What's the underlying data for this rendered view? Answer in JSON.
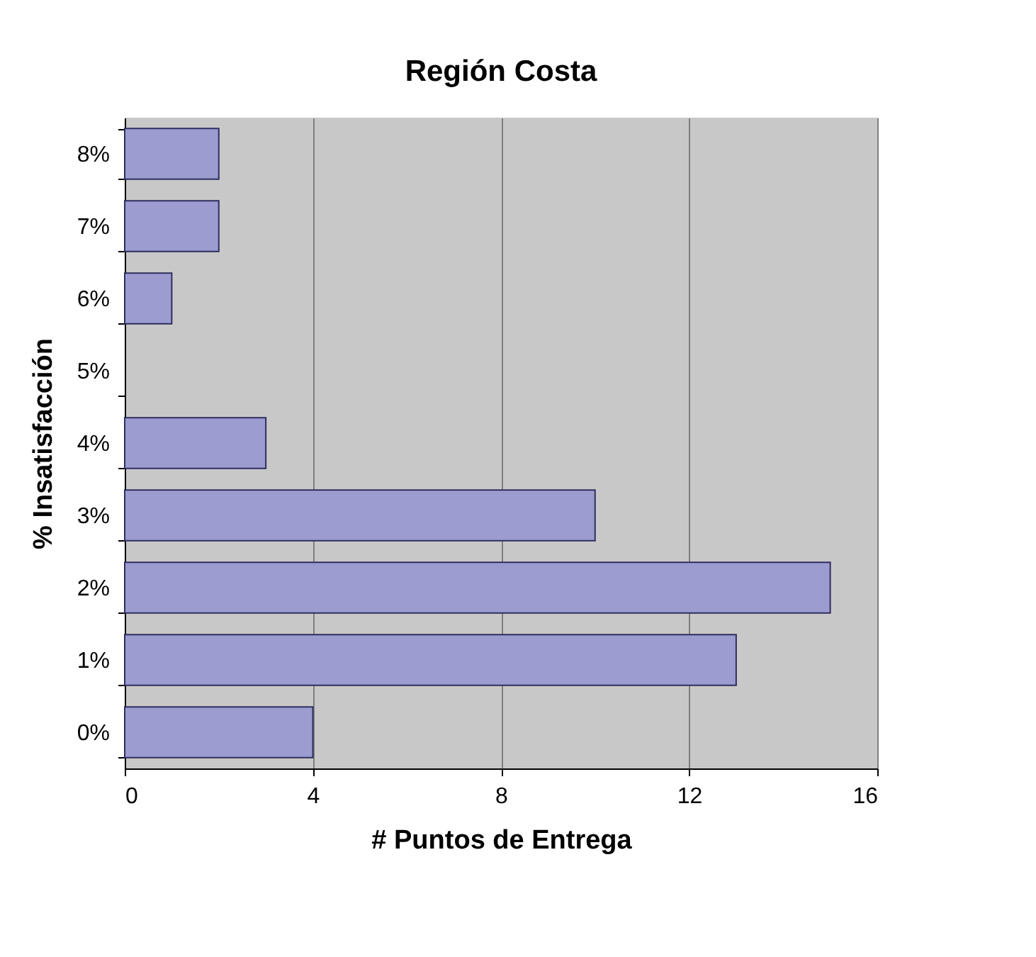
{
  "chart_data": {
    "type": "bar",
    "orientation": "horizontal",
    "title": "Región Costa",
    "xlabel": "# Puntos de Entrega",
    "ylabel": "% Insatisfacción",
    "categories": [
      "8%",
      "7%",
      "6%",
      "5%",
      "4%",
      "3%",
      "2%",
      "1%",
      "0%"
    ],
    "values": [
      2,
      2,
      1,
      null,
      3,
      10,
      15,
      13,
      4
    ],
    "color": "#9c9cd0",
    "xlim": [
      0,
      16
    ],
    "xticks": [
      0,
      4,
      8,
      12,
      16
    ],
    "grid": "x"
  }
}
